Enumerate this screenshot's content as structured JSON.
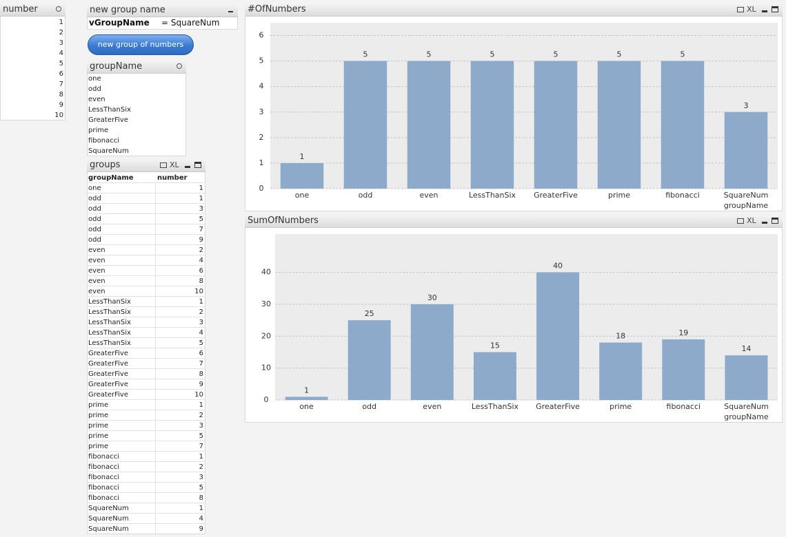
{
  "number_listbox": {
    "title": "number",
    "items": [
      1,
      2,
      3,
      4,
      5,
      6,
      7,
      8,
      9,
      10
    ]
  },
  "input_box": {
    "title": "new group name",
    "variable": "vGroupName",
    "value": "= SquareNum"
  },
  "button": {
    "label": "new group of numbers"
  },
  "groupname_listbox": {
    "title": "groupName",
    "items": [
      "one",
      "odd",
      "even",
      "LessThanSix",
      "GreaterFive",
      "prime",
      "fibonacci",
      "SquareNum"
    ]
  },
  "caption_icon_text": "XL",
  "groups_table": {
    "title": "groups",
    "columns": [
      "groupName",
      "number"
    ],
    "rows": [
      [
        "one",
        1
      ],
      [
        "odd",
        1
      ],
      [
        "odd",
        3
      ],
      [
        "odd",
        5
      ],
      [
        "odd",
        7
      ],
      [
        "odd",
        9
      ],
      [
        "even",
        2
      ],
      [
        "even",
        4
      ],
      [
        "even",
        6
      ],
      [
        "even",
        8
      ],
      [
        "even",
        10
      ],
      [
        "LessThanSix",
        1
      ],
      [
        "LessThanSix",
        2
      ],
      [
        "LessThanSix",
        3
      ],
      [
        "LessThanSix",
        4
      ],
      [
        "LessThanSix",
        5
      ],
      [
        "GreaterFive",
        6
      ],
      [
        "GreaterFive",
        7
      ],
      [
        "GreaterFive",
        8
      ],
      [
        "GreaterFive",
        9
      ],
      [
        "GreaterFive",
        10
      ],
      [
        "prime",
        1
      ],
      [
        "prime",
        2
      ],
      [
        "prime",
        3
      ],
      [
        "prime",
        5
      ],
      [
        "prime",
        7
      ],
      [
        "fibonacci",
        1
      ],
      [
        "fibonacci",
        2
      ],
      [
        "fibonacci",
        3
      ],
      [
        "fibonacci",
        5
      ],
      [
        "fibonacci",
        8
      ],
      [
        "SquareNum",
        1
      ],
      [
        "SquareNum",
        4
      ],
      [
        "SquareNum",
        9
      ]
    ]
  },
  "chart_data": [
    {
      "type": "bar",
      "title": "#OfNumbers",
      "xlabel": "groupName",
      "categories": [
        "one",
        "odd",
        "even",
        "LessThanSix",
        "GreaterFive",
        "prime",
        "fibonacci",
        "SquareNum"
      ],
      "values": [
        1,
        5,
        5,
        5,
        5,
        5,
        5,
        3
      ],
      "color": "#8eaacb",
      "ylim": [
        0,
        6.5
      ],
      "yticks": [
        0,
        1,
        2,
        3,
        4,
        5,
        6
      ],
      "grid": true
    },
    {
      "type": "bar",
      "title": "SumOfNumbers",
      "xlabel": "groupName",
      "categories": [
        "one",
        "odd",
        "even",
        "LessThanSix",
        "GreaterFive",
        "prime",
        "fibonacci",
        "SquareNum"
      ],
      "values": [
        1,
        25,
        30,
        15,
        40,
        18,
        19,
        14
      ],
      "color": "#8eaacb",
      "ylim": [
        0,
        52
      ],
      "yticks": [
        0,
        10,
        20,
        30,
        40
      ],
      "grid": true
    }
  ]
}
